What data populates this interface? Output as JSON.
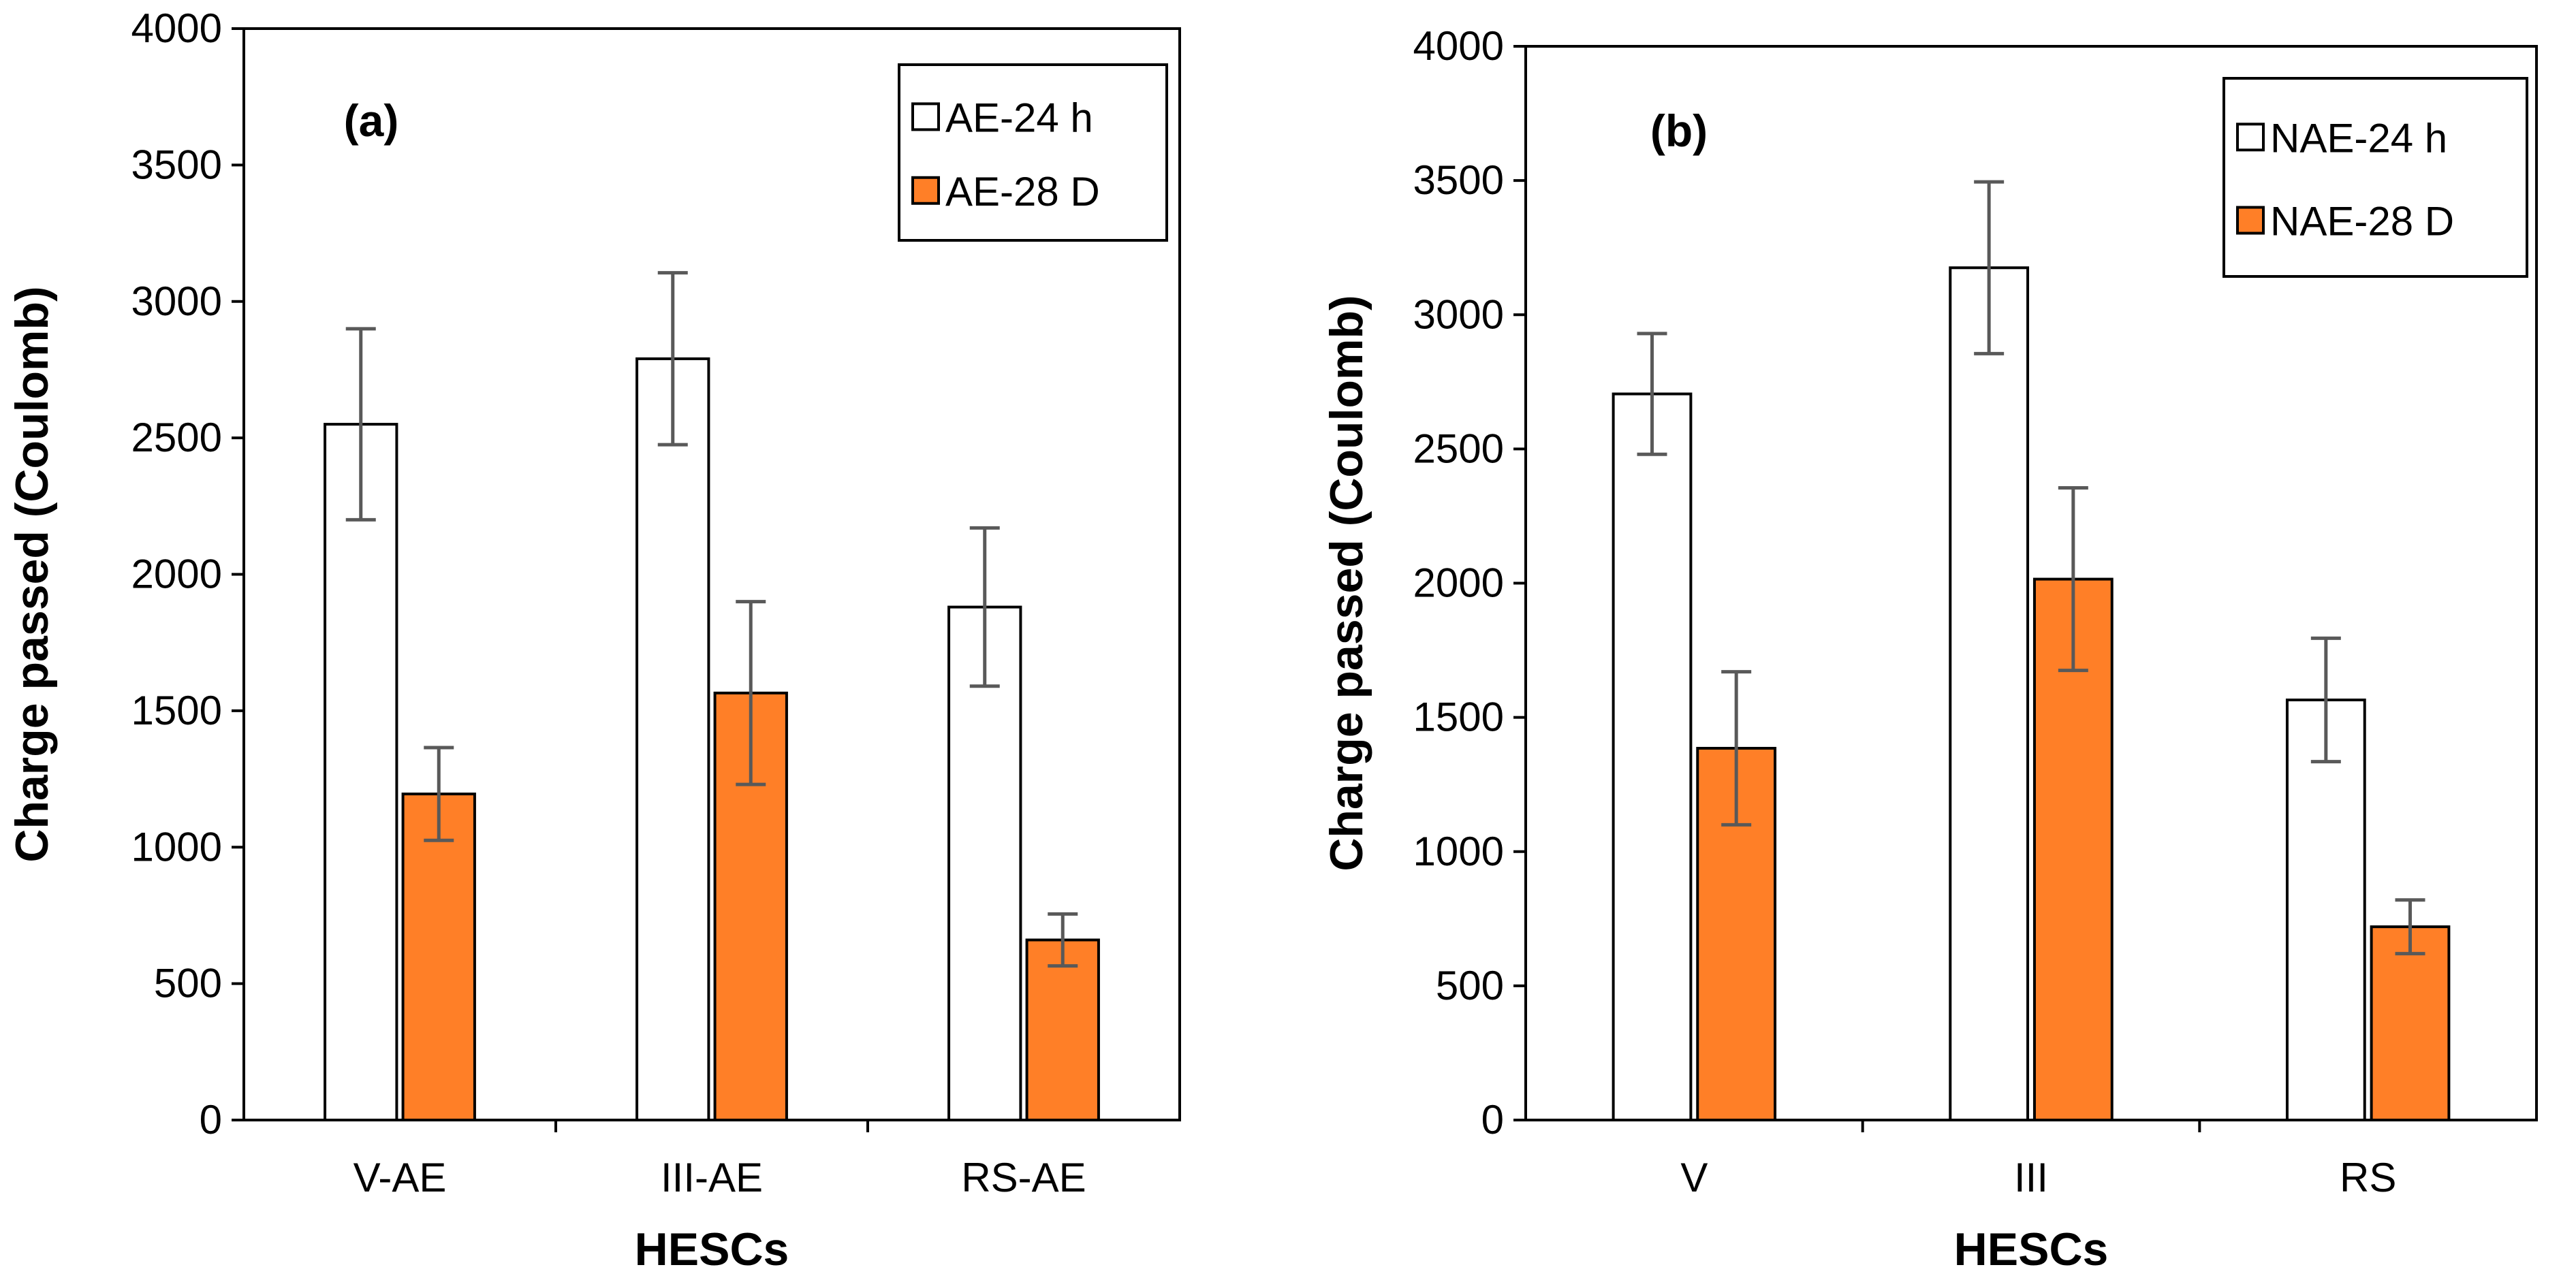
{
  "chart_data": [
    {
      "type": "bar",
      "panel_label": "(a)",
      "xlabel": "HESCs",
      "ylabel": "Charge passed (Coulomb)",
      "ylim": [
        0,
        4000
      ],
      "yticks": [
        0,
        500,
        1000,
        1500,
        2000,
        2500,
        3000,
        3500,
        4000
      ],
      "categories": [
        "V-AE",
        "III-AE",
        "RS-AE"
      ],
      "legend_position": "top-right",
      "series": [
        {
          "name": "AE-24 h",
          "color": "#ffffff",
          "values": [
            2550,
            2790,
            1880
          ],
          "errors": [
            350,
            315,
            290
          ]
        },
        {
          "name": "AE-28 D",
          "color": "#ff7f27",
          "values": [
            1195,
            1565,
            660
          ],
          "errors": [
            170,
            335,
            95
          ]
        }
      ]
    },
    {
      "type": "bar",
      "panel_label": "(b)",
      "xlabel": "HESCs",
      "ylabel": "Charge passed (Coulomb)",
      "ylim": [
        0,
        4000
      ],
      "yticks": [
        0,
        500,
        1000,
        1500,
        2000,
        2500,
        3000,
        3500,
        4000
      ],
      "categories": [
        "V",
        "III",
        "RS"
      ],
      "legend_position": "top-right",
      "series": [
        {
          "name": "NAE-24 h",
          "color": "#ffffff",
          "values": [
            2705,
            3175,
            1565
          ],
          "errors": [
            225,
            320,
            230
          ]
        },
        {
          "name": "NAE-28 D",
          "color": "#ff7f27",
          "values": [
            1385,
            2015,
            720
          ],
          "errors": [
            285,
            340,
            100
          ]
        }
      ]
    }
  ]
}
